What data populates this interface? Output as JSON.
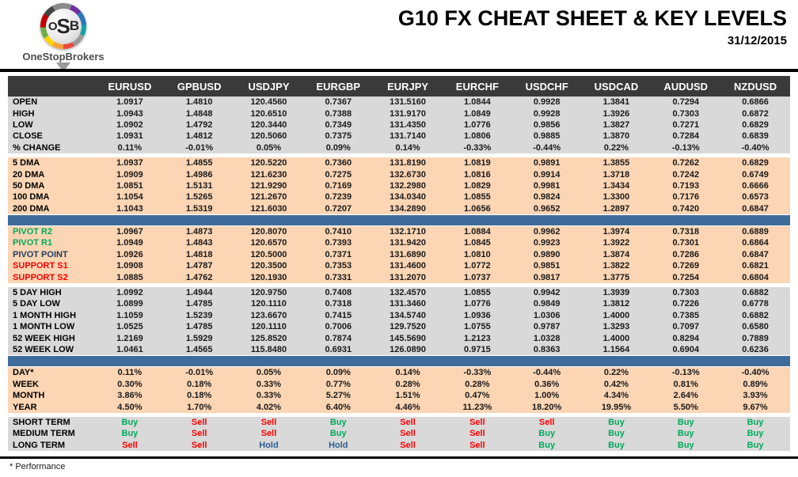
{
  "logo": {
    "abbr_o": "O",
    "abbr_s": "S",
    "abbr_b": "B",
    "name": "OneStopBrokers"
  },
  "header": {
    "title": "G10 FX CHEAT SHEET & KEY LEVELS",
    "date": "31/12/2015"
  },
  "footer": {
    "note": "* Performance"
  },
  "colors": {
    "header_bg": "#3a3a3a",
    "gray_band": "#d9d9d9",
    "peach_band": "#fbd5b4",
    "blue_bar": "#3e6b99",
    "green": "#00a95c",
    "red": "#fe0000",
    "navy": "#1f3c5f",
    "hold_blue": "#2e6094"
  },
  "table": {
    "columns": [
      "EURUSD",
      "GPBUSD",
      "USDJPY",
      "EURGBP",
      "EURJPY",
      "EURCHF",
      "USDCHF",
      "USDCAD",
      "AUDUSD",
      "NZDUSD"
    ],
    "sections": [
      {
        "bg": "gray",
        "rows": [
          {
            "label": "OPEN",
            "values": [
              "1.0917",
              "1.4810",
              "120.4560",
              "0.7367",
              "131.5160",
              "1.0844",
              "0.9928",
              "1.3841",
              "0.7294",
              "0.6866"
            ]
          },
          {
            "label": "HIGH",
            "values": [
              "1.0943",
              "1.4848",
              "120.6510",
              "0.7388",
              "131.9170",
              "1.0849",
              "0.9928",
              "1.3926",
              "0.7303",
              "0.6872"
            ]
          },
          {
            "label": "LOW",
            "values": [
              "1.0902",
              "1.4792",
              "120.3440",
              "0.7349",
              "131.4350",
              "1.0776",
              "0.9856",
              "1.3827",
              "0.7271",
              "0.6829"
            ]
          },
          {
            "label": "CLOSE",
            "values": [
              "1.0931",
              "1.4812",
              "120.5060",
              "0.7375",
              "131.7140",
              "1.0806",
              "0.9885",
              "1.3870",
              "0.7284",
              "0.6839"
            ]
          },
          {
            "label": "% CHANGE",
            "values": [
              "0.11%",
              "-0.01%",
              "0.05%",
              "0.09%",
              "0.14%",
              "-0.33%",
              "-0.44%",
              "0.22%",
              "-0.13%",
              "-0.40%"
            ]
          }
        ]
      },
      {
        "type": "gap"
      },
      {
        "bg": "peach",
        "rows": [
          {
            "label": "5 DMA",
            "values": [
              "1.0937",
              "1.4855",
              "120.5220",
              "0.7360",
              "131.8190",
              "1.0819",
              "0.9891",
              "1.3855",
              "0.7262",
              "0.6829"
            ]
          },
          {
            "label": "20 DMA",
            "values": [
              "1.0909",
              "1.4986",
              "121.6230",
              "0.7275",
              "132.6730",
              "1.0816",
              "0.9914",
              "1.3718",
              "0.7242",
              "0.6749"
            ]
          },
          {
            "label": "50 DMA",
            "values": [
              "1.0851",
              "1.5131",
              "121.9290",
              "0.7169",
              "132.2980",
              "1.0829",
              "0.9981",
              "1.3434",
              "0.7193",
              "0.6666"
            ]
          },
          {
            "label": "100 DMA",
            "values": [
              "1.1054",
              "1.5265",
              "121.2670",
              "0.7239",
              "134.0340",
              "1.0855",
              "0.9824",
              "1.3300",
              "0.7176",
              "0.6573"
            ]
          },
          {
            "label": "200 DMA",
            "values": [
              "1.1043",
              "1.5319",
              "121.6030",
              "0.7207",
              "134.2890",
              "1.0656",
              "0.9652",
              "1.2897",
              "0.7420",
              "0.6847"
            ]
          }
        ]
      },
      {
        "type": "bluebar"
      },
      {
        "bg": "peach",
        "rows": [
          {
            "label": "PIVOT R2",
            "label_color": "green",
            "values": [
              "1.0967",
              "1.4873",
              "120.8070",
              "0.7410",
              "132.1710",
              "1.0884",
              "0.9962",
              "1.3974",
              "0.7318",
              "0.6889"
            ]
          },
          {
            "label": "PIVOT R1",
            "label_color": "green",
            "values": [
              "1.0949",
              "1.4843",
              "120.6570",
              "0.7393",
              "131.9420",
              "1.0845",
              "0.9923",
              "1.3922",
              "0.7301",
              "0.6864"
            ]
          },
          {
            "label": "PIVOT POINT",
            "label_color": "navy",
            "values": [
              "1.0926",
              "1.4818",
              "120.5000",
              "0.7371",
              "131.6890",
              "1.0810",
              "0.9890",
              "1.3874",
              "0.7286",
              "0.6847"
            ]
          },
          {
            "label": "SUPPORT S1",
            "label_color": "red",
            "values": [
              "1.0908",
              "1.4787",
              "120.3500",
              "0.7353",
              "131.4600",
              "1.0772",
              "0.9851",
              "1.3822",
              "0.7269",
              "0.6821"
            ]
          },
          {
            "label": "SUPPORT S2",
            "label_color": "red",
            "values": [
              "1.0885",
              "1.4762",
              "120.1930",
              "0.7331",
              "131.2070",
              "1.0737",
              "0.9817",
              "1.3775",
              "0.7254",
              "0.6804"
            ]
          }
        ]
      },
      {
        "type": "gap"
      },
      {
        "bg": "gray",
        "rows": [
          {
            "label": "5 DAY HIGH",
            "values": [
              "1.0992",
              "1.4944",
              "120.9750",
              "0.7408",
              "132.4570",
              "1.0855",
              "0.9942",
              "1.3939",
              "0.7303",
              "0.6882"
            ]
          },
          {
            "label": "5 DAY LOW",
            "values": [
              "1.0899",
              "1.4785",
              "120.1110",
              "0.7318",
              "131.3460",
              "1.0776",
              "0.9849",
              "1.3812",
              "0.7226",
              "0.6778"
            ]
          },
          {
            "label": "1 MONTH HIGH",
            "values": [
              "1.1059",
              "1.5239",
              "123.6670",
              "0.7415",
              "134.5740",
              "1.0936",
              "1.0306",
              "1.4000",
              "0.7385",
              "0.6882"
            ]
          },
          {
            "label": "1 MONTH LOW",
            "values": [
              "1.0525",
              "1.4785",
              "120.1110",
              "0.7006",
              "129.7520",
              "1.0755",
              "0.9787",
              "1.3293",
              "0.7097",
              "0.6580"
            ]
          },
          {
            "label": "52 WEEK HIGH",
            "values": [
              "1.2169",
              "1.5929",
              "125.8520",
              "0.7874",
              "145.5690",
              "1.2123",
              "1.0328",
              "1.4000",
              "0.8294",
              "0.7889"
            ]
          },
          {
            "label": "52 WEEK LOW",
            "values": [
              "1.0461",
              "1.4565",
              "115.8480",
              "0.6931",
              "126.0890",
              "0.9715",
              "0.8363",
              "1.1564",
              "0.6904",
              "0.6236"
            ]
          }
        ]
      },
      {
        "type": "bluebar"
      },
      {
        "bg": "peach",
        "rows": [
          {
            "label": "DAY*",
            "values": [
              "0.11%",
              "-0.01%",
              "0.05%",
              "0.09%",
              "0.14%",
              "-0.33%",
              "-0.44%",
              "0.22%",
              "-0.13%",
              "-0.40%"
            ]
          },
          {
            "label": "WEEK",
            "values": [
              "0.30%",
              "0.18%",
              "0.33%",
              "0.77%",
              "0.28%",
              "0.28%",
              "0.36%",
              "0.42%",
              "0.81%",
              "0.89%"
            ]
          },
          {
            "label": "MONTH",
            "values": [
              "3.86%",
              "0.18%",
              "0.33%",
              "5.27%",
              "1.51%",
              "0.47%",
              "1.00%",
              "4.34%",
              "2.64%",
              "3.93%"
            ]
          },
          {
            "label": "YEAR",
            "values": [
              "4.50%",
              "1.70%",
              "4.02%",
              "6.40%",
              "4.46%",
              "11.23%",
              "18.20%",
              "19.95%",
              "5.50%",
              "9.67%"
            ]
          }
        ]
      },
      {
        "type": "gap"
      },
      {
        "bg": "gray",
        "signal": true,
        "rows": [
          {
            "label": "SHORT TERM",
            "values": [
              "Buy",
              "Sell",
              "Sell",
              "Buy",
              "Sell",
              "Sell",
              "Sell",
              "Buy",
              "Buy",
              "Buy"
            ]
          },
          {
            "label": "MEDIUM TERM",
            "values": [
              "Buy",
              "Sell",
              "Sell",
              "Buy",
              "Sell",
              "Sell",
              "Buy",
              "Buy",
              "Buy",
              "Buy"
            ]
          },
          {
            "label": "LONG TERM",
            "values": [
              "Sell",
              "Sell",
              "Hold",
              "Hold",
              "Sell",
              "Sell",
              "Buy",
              "Buy",
              "Buy",
              "Buy"
            ]
          }
        ]
      }
    ]
  }
}
